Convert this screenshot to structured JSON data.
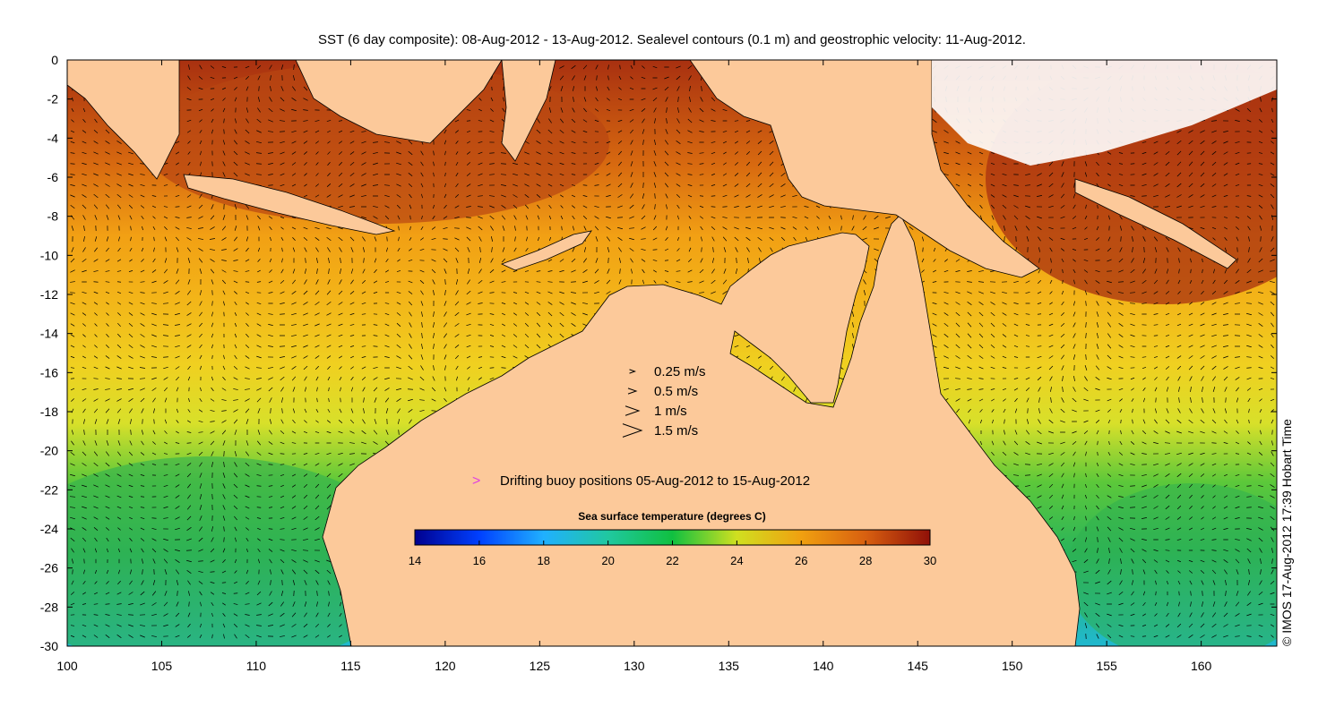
{
  "title": "SST (6 day composite): 08-Aug-2012 - 13-Aug-2012. Sealevel contours (0.1 m) and geostrophic velocity: 11-Aug-2012.",
  "credit": "© IMOS 17-Aug-2012 17:39 Hobart Time",
  "axes": {
    "x_ticks": [
      "100",
      "105",
      "110",
      "115",
      "120",
      "125",
      "130",
      "135",
      "140",
      "145",
      "150",
      "155",
      "160"
    ],
    "y_ticks": [
      "0",
      "-2",
      "-4",
      "-6",
      "-8",
      "-10",
      "-12",
      "-14",
      "-16",
      "-18",
      "-20",
      "-22",
      "-24",
      "-26",
      "-28",
      "-30"
    ],
    "lon_range": [
      100,
      164
    ],
    "lat_range": [
      -30,
      0
    ]
  },
  "velocity_legend": {
    "items": [
      {
        "label": "0.25 m/s",
        "speed": 0.25
      },
      {
        "label": "0.5 m/s",
        "speed": 0.5
      },
      {
        "label": "1 m/s",
        "speed": 1
      },
      {
        "label": "1.5 m/s",
        "speed": 1.5
      }
    ]
  },
  "buoy_legend": {
    "label": "Drifting buoy positions 05-Aug-2012 to 15-Aug-2012",
    "color": "#e040e0"
  },
  "colorbar": {
    "title": "Sea surface temperature (degrees C)",
    "min": 14,
    "max": 30,
    "tick_labels": [
      "14",
      "16",
      "18",
      "20",
      "22",
      "24",
      "26",
      "28",
      "30"
    ]
  },
  "colors": {
    "land": "#fcc99a",
    "coast": "#000000",
    "contour": "#ffffff"
  }
}
